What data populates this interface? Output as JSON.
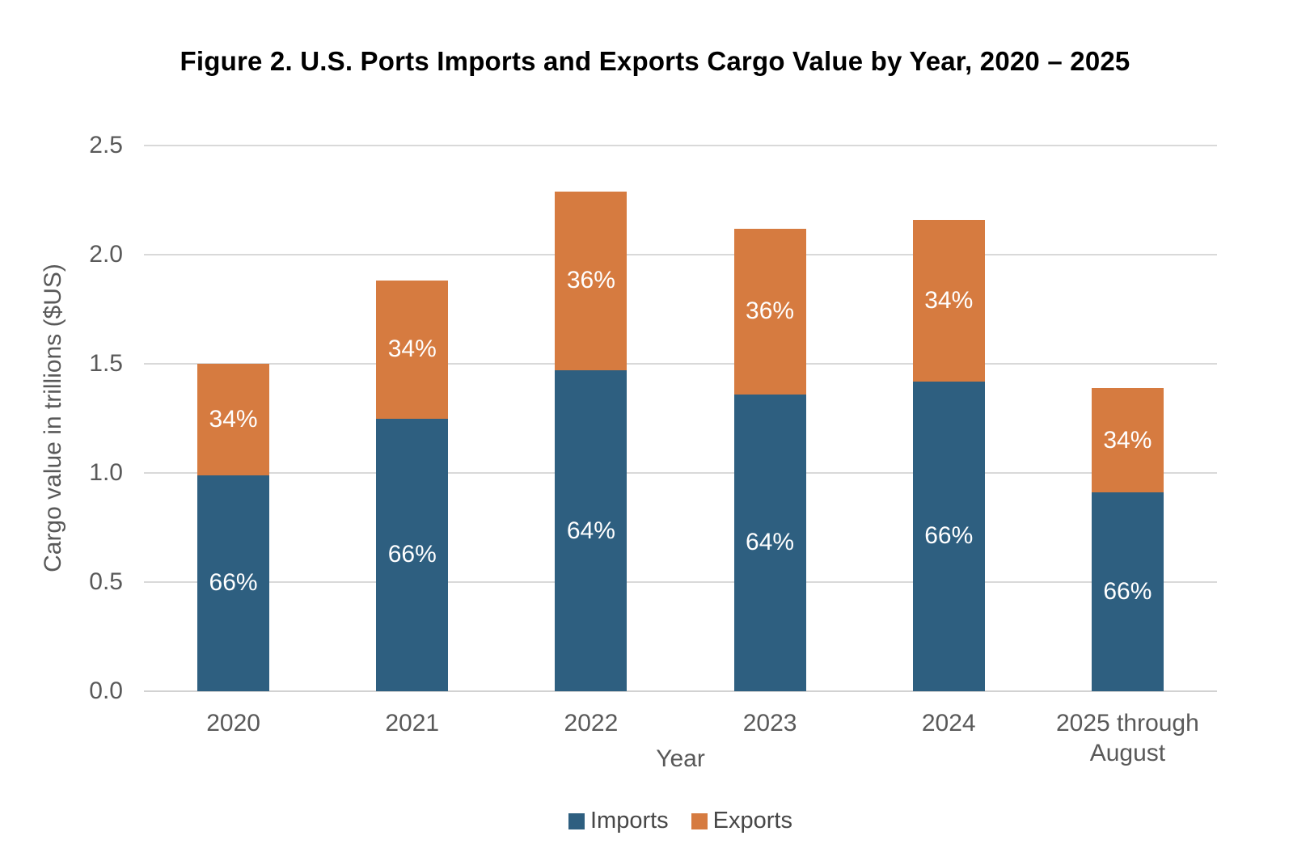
{
  "chart_data": {
    "type": "bar",
    "stacked": true,
    "title": "Figure 2. U.S. Ports Imports and Exports Cargo Value by Year, 2020 – 2025",
    "xlabel": "Year",
    "ylabel": "Cargo value in trillions ($US)",
    "ylim": [
      0,
      2.5
    ],
    "y_ticks": [
      "0.0",
      "0.5",
      "1.0",
      "1.5",
      "2.0",
      "2.5"
    ],
    "grid": "horizontal",
    "legend_position": "bottom",
    "categories": [
      "2020",
      "2021",
      "2022",
      "2023",
      "2024",
      "2025 through August"
    ],
    "series": [
      {
        "name": "Imports",
        "color": "#2E5F80",
        "values": [
          0.99,
          1.25,
          1.47,
          1.36,
          1.42,
          0.91
        ],
        "labels": [
          "66%",
          "66%",
          "64%",
          "64%",
          "66%",
          "66%"
        ]
      },
      {
        "name": "Exports",
        "color": "#D67B40",
        "values": [
          0.51,
          0.63,
          0.82,
          0.76,
          0.74,
          0.48
        ],
        "labels": [
          "34%",
          "34%",
          "36%",
          "36%",
          "34%",
          "34%"
        ]
      }
    ],
    "totals": [
      1.5,
      1.88,
      2.29,
      2.12,
      2.16,
      1.39
    ]
  },
  "colors": {
    "imports": "#2E5F80",
    "exports": "#D67B40",
    "gridline": "#D9D9D9",
    "axis_text": "#595959",
    "title_text": "#000000",
    "bar_label_text": "#FFFFFF",
    "background": "#FFFFFF"
  }
}
